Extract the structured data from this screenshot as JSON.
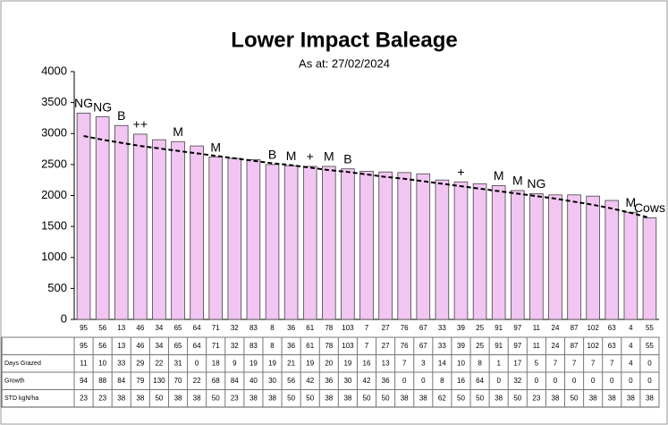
{
  "chart_data": {
    "type": "bar",
    "title": "Lower Impact Baleage",
    "subtitle": "As at: 27/02/2024",
    "categories": [
      "95",
      "56",
      "13",
      "46",
      "34",
      "65",
      "64",
      "71",
      "32",
      "83",
      "8",
      "36",
      "61",
      "78",
      "103",
      "7",
      "27",
      "76",
      "67",
      "33",
      "39",
      "25",
      "91",
      "97",
      "11",
      "24",
      "87",
      "102",
      "63",
      "4",
      "55"
    ],
    "values": [
      3330,
      3270,
      3130,
      2990,
      2900,
      2870,
      2800,
      2620,
      2600,
      2580,
      2500,
      2480,
      2470,
      2470,
      2430,
      2390,
      2380,
      2370,
      2350,
      2250,
      2220,
      2190,
      2160,
      2080,
      2030,
      2010,
      2010,
      1990,
      1920,
      1730,
      1640
    ],
    "annotations": [
      "NG",
      "NG",
      "B",
      "++",
      null,
      "M",
      null,
      "M",
      null,
      null,
      "B",
      "M",
      "+",
      "M",
      "B",
      null,
      null,
      null,
      null,
      null,
      "+",
      null,
      "M",
      "M",
      "NG",
      null,
      null,
      null,
      null,
      "M",
      "Cows"
    ],
    "color": "#f2c6f2",
    "trendline": {
      "color": "#000000",
      "values": [
        2960,
        2900,
        2850,
        2800,
        2760,
        2720,
        2680,
        2640,
        2600,
        2560,
        2520,
        2490,
        2450,
        2410,
        2380,
        2340,
        2300,
        2270,
        2230,
        2190,
        2150,
        2110,
        2070,
        2030,
        1990,
        1950,
        1900,
        1850,
        1790,
        1720,
        1640
      ]
    },
    "ylim": [
      0,
      4000
    ],
    "yticks": [
      0,
      500,
      1000,
      1500,
      2000,
      2500,
      3000,
      3500,
      4000
    ],
    "table": {
      "rows": [
        {
          "name": "Days Grazed",
          "values": [
            11,
            10,
            33,
            29,
            22,
            31,
            0,
            18,
            9,
            19,
            19,
            21,
            19,
            20,
            19,
            16,
            13,
            7,
            3,
            14,
            10,
            8,
            1,
            17,
            5,
            7,
            7,
            7,
            7,
            4,
            0
          ]
        },
        {
          "name": "Growth",
          "values": [
            94,
            88,
            84,
            79,
            130,
            70,
            22,
            68,
            84,
            40,
            30,
            56,
            42,
            36,
            30,
            42,
            36,
            0,
            0,
            8,
            16,
            64,
            0,
            32,
            0,
            0,
            0,
            0,
            0,
            0,
            0
          ]
        },
        {
          "name": "STD kgN/ha",
          "values": [
            23,
            23,
            38,
            38,
            50,
            38,
            38,
            50,
            23,
            38,
            38,
            50,
            50,
            38,
            38,
            50,
            50,
            38,
            38,
            62,
            50,
            50,
            38,
            50,
            23,
            38,
            50,
            38,
            38,
            38,
            38
          ]
        }
      ]
    }
  }
}
